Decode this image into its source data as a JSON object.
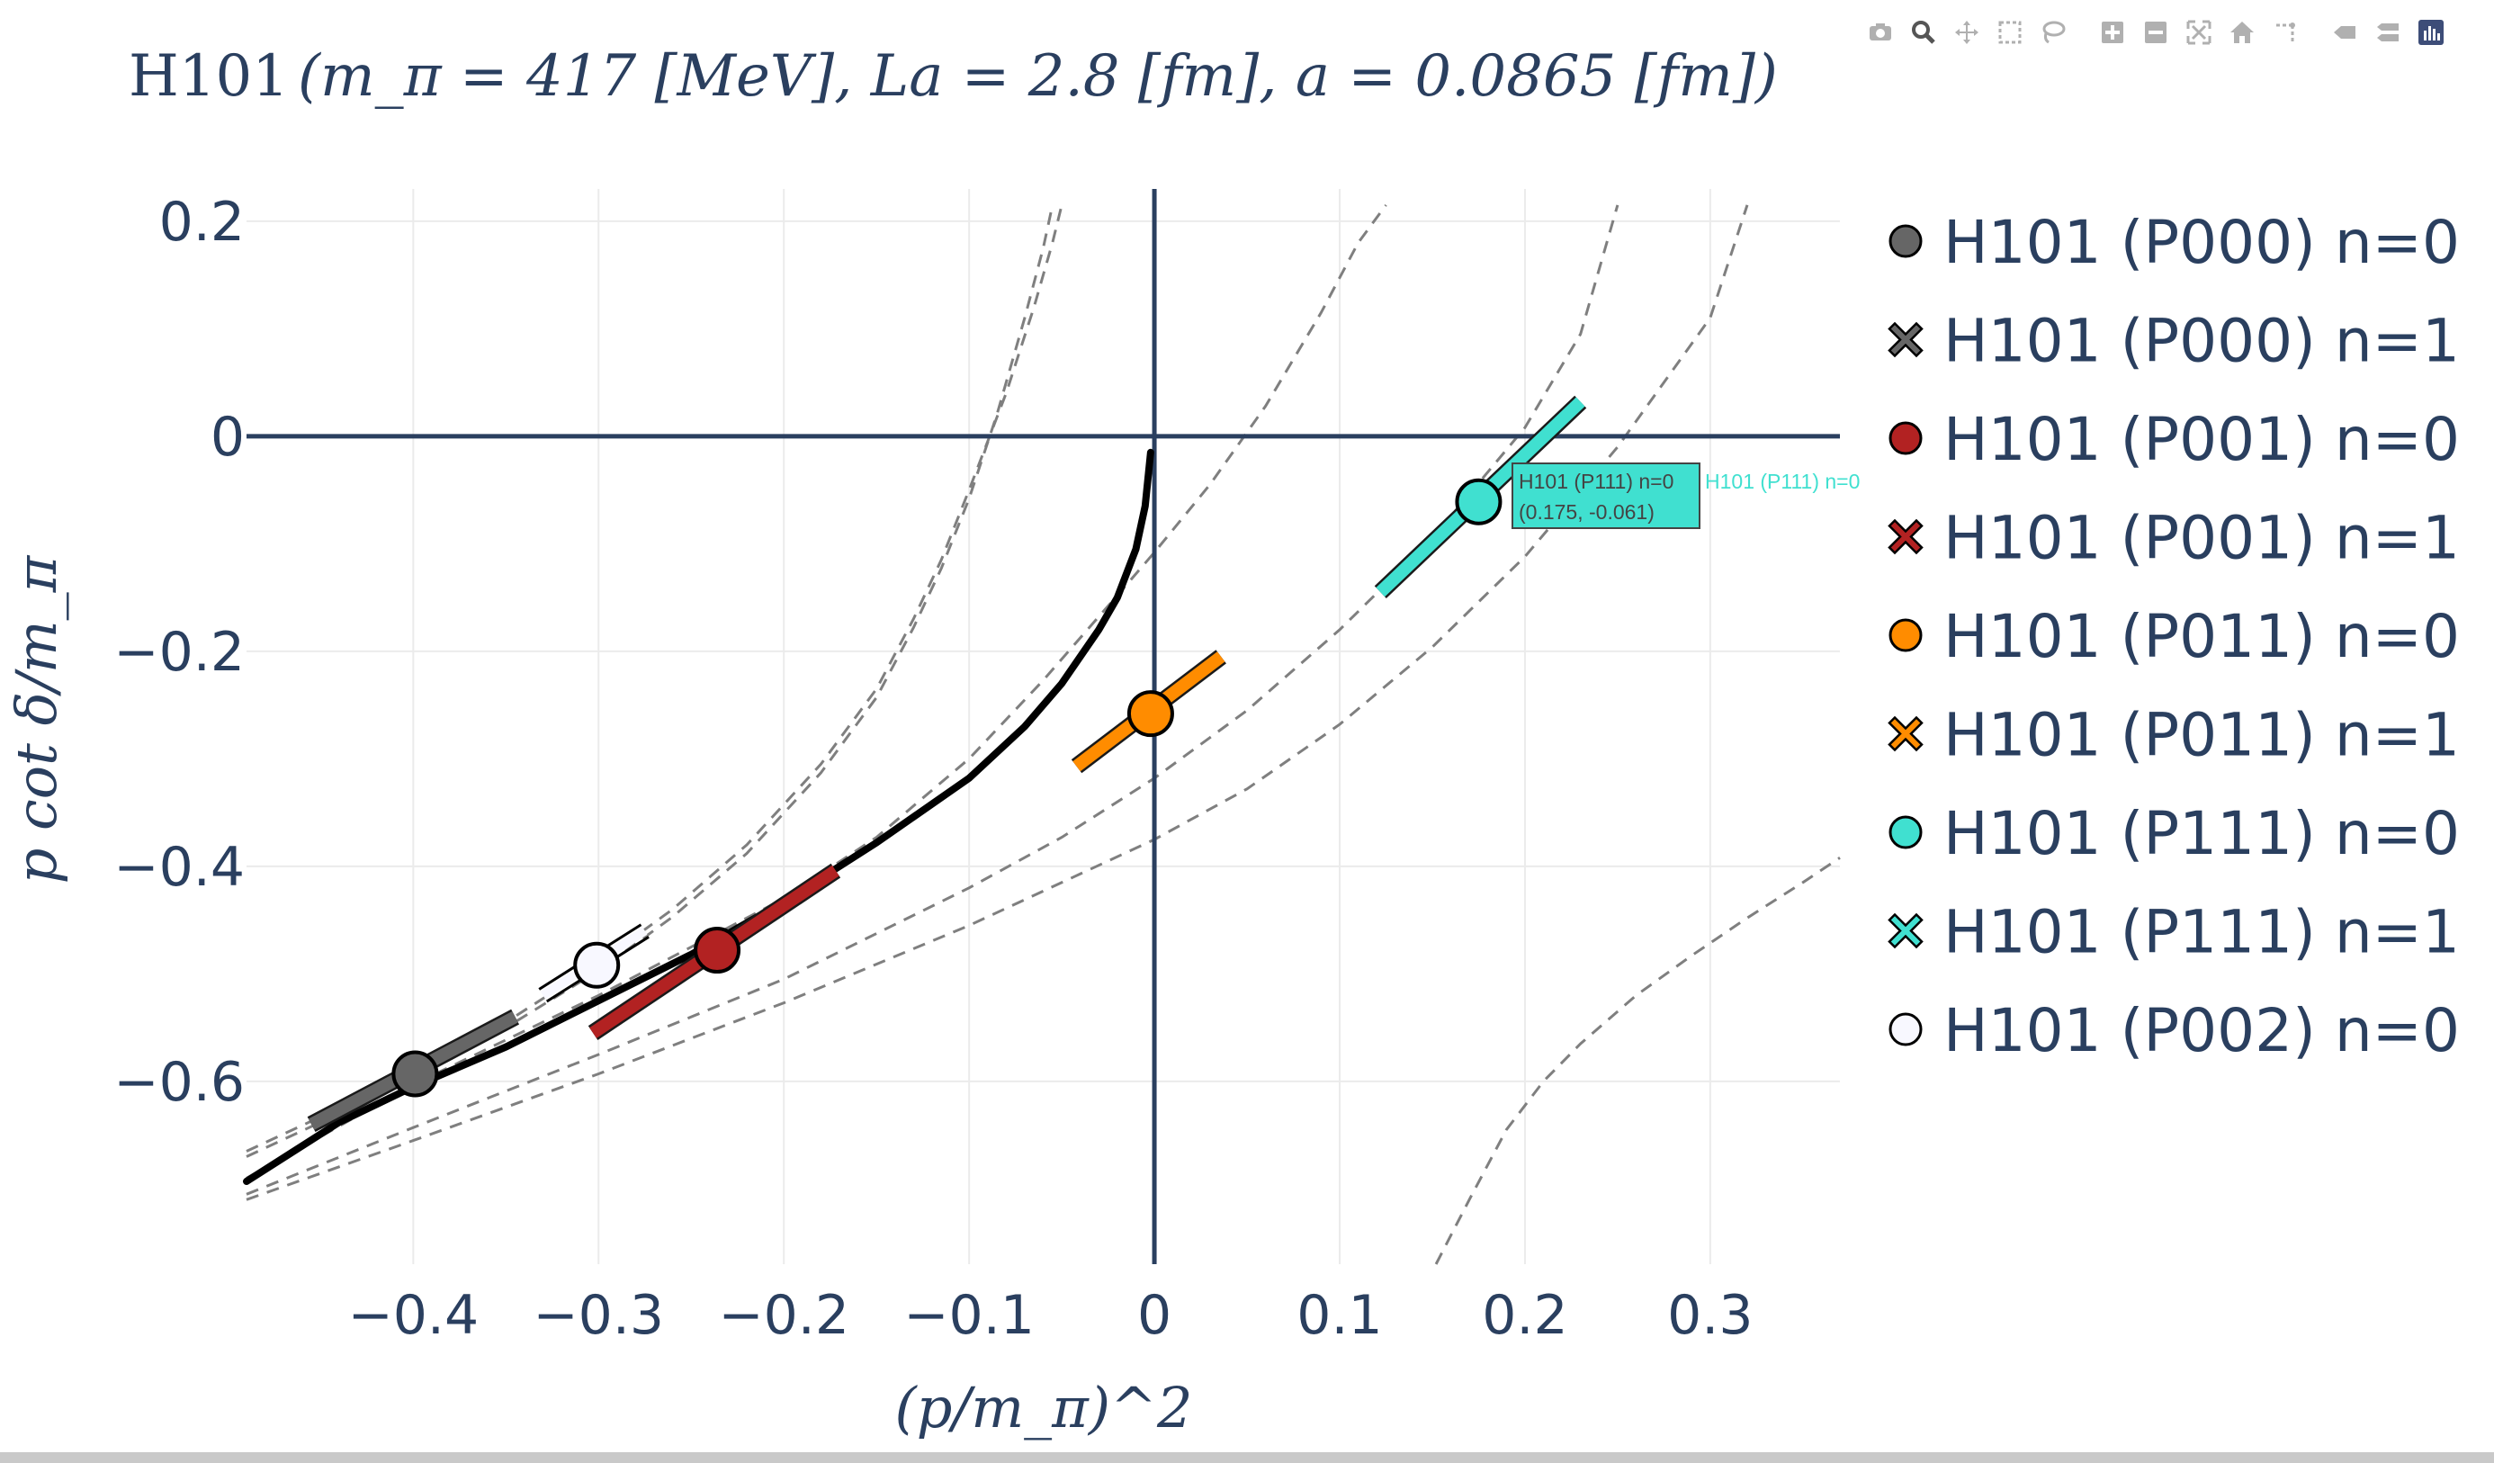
{
  "modebar": {
    "buttons": [
      {
        "icon": "camera-icon"
      },
      {
        "icon": "zoom-icon"
      },
      {
        "icon": "pan-icon"
      },
      {
        "icon": "box-select-icon"
      },
      {
        "icon": "lasso-select-icon"
      },
      {
        "icon": "zoom-in-icon"
      },
      {
        "icon": "zoom-out-icon"
      },
      {
        "icon": "autoscale-icon"
      },
      {
        "icon": "reset-axes-icon"
      },
      {
        "icon": "spike-lines-icon"
      },
      {
        "icon": "hover-closest-icon"
      },
      {
        "icon": "hover-compare-icon"
      },
      {
        "icon": "plotly-logo-icon"
      }
    ]
  },
  "chart_data": {
    "type": "scatter",
    "title_prefix": "H101",
    "title_math": "(m_π = 417 [MeV],  La = 2.8 [fm], a = 0.0865 [fm])",
    "xlabel": "(p/m_π)^2",
    "ylabel": "p cot δ/m_π",
    "xlim": [
      -0.49,
      0.37
    ],
    "ylim": [
      -0.77,
      0.23
    ],
    "xticks": [
      -0.4,
      -0.3,
      -0.2,
      -0.1,
      0,
      0.1,
      0.2,
      0.3
    ],
    "xtick_labels": [
      "−0.4",
      "−0.3",
      "−0.2",
      "−0.1",
      "0",
      "0.1",
      "0.2",
      "0.3"
    ],
    "yticks": [
      -0.6,
      -0.4,
      -0.2,
      0,
      0.2
    ],
    "ytick_labels": [
      "−0.6",
      "−0.4",
      "−0.2",
      "0",
      "0.2"
    ],
    "grid": true,
    "zero_lines": true,
    "legend_position": "right",
    "legend": [
      {
        "name": "H101 (P000) n=0",
        "symbol": "circle",
        "color": "#666666"
      },
      {
        "name": "H101 (P000) n=1",
        "symbol": "x",
        "color": "#666666"
      },
      {
        "name": "H101 (P001) n=0",
        "symbol": "circle",
        "color": "#b22222"
      },
      {
        "name": "H101 (P001) n=1",
        "symbol": "x",
        "color": "#b22222"
      },
      {
        "name": "H101 (P011) n=0",
        "symbol": "circle",
        "color": "#ff8c00"
      },
      {
        "name": "H101 (P011) n=1",
        "symbol": "x",
        "color": "#ff8c00"
      },
      {
        "name": "H101 (P111) n=0",
        "symbol": "circle",
        "color": "#40e0d0"
      },
      {
        "name": "H101 (P111) n=1",
        "symbol": "x",
        "color": "#40e0d0"
      },
      {
        "name": "H101 (P002) n=0",
        "symbol": "circle",
        "color": "#f8f8ff"
      }
    ],
    "points": [
      {
        "series": "H101 (P000) n=0",
        "x": -0.399,
        "y": -0.593,
        "color": "#666666",
        "band": [
          [
            -0.455,
            -0.64
          ],
          [
            -0.345,
            -0.54
          ]
        ],
        "band_width": 14
      },
      {
        "series": "H101 (P002) n=0",
        "x": -0.301,
        "y": -0.492,
        "color": "#f8f8ff",
        "band": [
          [
            -0.33,
            -0.52
          ],
          [
            -0.275,
            -0.46
          ]
        ],
        "band_width": 10,
        "outlined_band": true
      },
      {
        "series": "H101 (P001) n=0",
        "x": -0.236,
        "y": -0.478,
        "color": "#b22222",
        "band": [
          [
            -0.303,
            -0.555
          ],
          [
            -0.172,
            -0.404
          ]
        ],
        "band_width": 14
      },
      {
        "series": "H101 (P011) n=0",
        "x": -0.002,
        "y": -0.258,
        "color": "#ff8c00",
        "band": [
          [
            -0.042,
            -0.307
          ],
          [
            0.036,
            -0.205
          ]
        ],
        "band_width": 14
      },
      {
        "series": "H101 (P111) n=0",
        "x": 0.175,
        "y": -0.061,
        "color": "#40e0d0",
        "band": [
          [
            0.122,
            -0.145
          ],
          [
            0.23,
            0.032
          ]
        ],
        "band_width": 14
      }
    ],
    "fit_curve": {
      "color": "#000000",
      "x": [
        -0.49,
        -0.44,
        -0.4,
        -0.35,
        -0.3,
        -0.25,
        -0.2,
        -0.15,
        -0.1,
        -0.07,
        -0.05,
        -0.03,
        -0.02,
        -0.01,
        -0.005,
        -0.002
      ],
      "y": [
        -0.693,
        -0.638,
        -0.605,
        -0.568,
        -0.525,
        -0.482,
        -0.433,
        -0.378,
        -0.318,
        -0.27,
        -0.23,
        -0.18,
        -0.15,
        -0.105,
        -0.065,
        -0.015
      ]
    },
    "dashed_curves": [
      {
        "x": [
          -0.49,
          -0.44,
          -0.4,
          -0.35,
          -0.3,
          -0.26,
          -0.22,
          -0.18,
          -0.15,
          -0.13,
          -0.115,
          -0.1,
          -0.08,
          -0.065,
          -0.055,
          -0.05
        ],
        "y": [
          -0.665,
          -0.625,
          -0.59,
          -0.545,
          -0.49,
          -0.44,
          -0.38,
          -0.305,
          -0.235,
          -0.17,
          -0.115,
          -0.05,
          0.04,
          0.12,
          0.18,
          0.215
        ]
      },
      {
        "x": [
          -0.49,
          -0.44,
          -0.4,
          -0.35,
          -0.3,
          -0.26,
          -0.22,
          -0.18,
          -0.15,
          -0.13,
          -0.115,
          -0.1,
          -0.085,
          -0.07,
          -0.06,
          -0.055
        ],
        "y": [
          -0.67,
          -0.63,
          -0.595,
          -0.55,
          -0.497,
          -0.447,
          -0.388,
          -0.313,
          -0.243,
          -0.178,
          -0.123,
          -0.058,
          0.02,
          0.11,
          0.175,
          0.215
        ]
      },
      {
        "x": [
          -0.49,
          -0.4,
          -0.3,
          -0.2,
          -0.15,
          -0.1,
          -0.06,
          -0.02,
          0.0,
          0.03,
          0.06,
          0.09,
          0.11,
          0.125
        ],
        "y": [
          -0.69,
          -0.603,
          -0.52,
          -0.43,
          -0.373,
          -0.3,
          -0.227,
          -0.148,
          -0.108,
          -0.045,
          0.028,
          0.115,
          0.18,
          0.215
        ]
      },
      {
        "x": [
          -0.49,
          -0.4,
          -0.3,
          -0.2,
          -0.1,
          -0.05,
          0.0,
          0.05,
          0.1,
          0.15,
          0.2,
          0.23,
          0.25
        ],
        "y": [
          -0.705,
          -0.643,
          -0.575,
          -0.505,
          -0.42,
          -0.373,
          -0.318,
          -0.255,
          -0.18,
          -0.095,
          0.008,
          0.095,
          0.215
        ]
      },
      {
        "x": [
          -0.49,
          -0.4,
          -0.3,
          -0.2,
          -0.1,
          0.0,
          0.05,
          0.1,
          0.15,
          0.2,
          0.25,
          0.3,
          0.32
        ],
        "y": [
          -0.71,
          -0.655,
          -0.593,
          -0.527,
          -0.455,
          -0.375,
          -0.328,
          -0.268,
          -0.196,
          -0.112,
          -0.01,
          0.11,
          0.215
        ]
      },
      {
        "x": [
          0.152,
          0.17,
          0.19,
          0.21,
          0.23,
          0.26,
          0.29,
          0.32,
          0.35,
          0.37
        ],
        "y": [
          -0.77,
          -0.71,
          -0.645,
          -0.6,
          -0.565,
          -0.52,
          -0.483,
          -0.448,
          -0.415,
          -0.392
        ]
      }
    ],
    "hover": {
      "text_line1": "H101 (P111) n=0",
      "text_line2": "(0.175, -0.061)",
      "side_label": "H101 (P111) n=0",
      "bg_color": "#40e0d0",
      "side_color": "#40e0d0"
    }
  }
}
